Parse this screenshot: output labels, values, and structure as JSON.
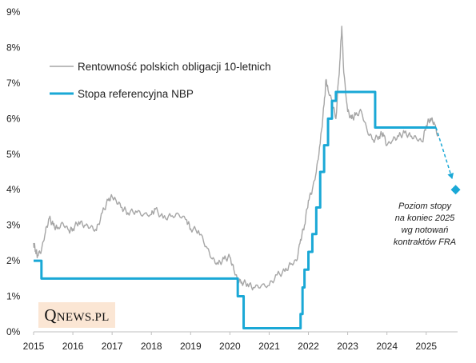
{
  "chart_data": {
    "type": "line",
    "title": "",
    "xlabel": "",
    "ylabel": "",
    "xlim": [
      2015.0,
      2025.8
    ],
    "ylim": [
      0,
      9
    ],
    "x_ticks": [
      "2015",
      "2016",
      "2017",
      "2018",
      "2019",
      "2020",
      "2021",
      "2022",
      "2023",
      "2024",
      "2025"
    ],
    "y_ticks": [
      "0%",
      "1%",
      "2%",
      "3%",
      "4%",
      "5%",
      "6%",
      "7%",
      "8%",
      "9%"
    ],
    "grid": false,
    "legend_position": "top-left",
    "series": [
      {
        "name": "Rentowność polskich obligacji 10-letnich",
        "color": "#a6a6a6",
        "x": [
          2015.0,
          2015.05,
          2015.1,
          2015.2,
          2015.3,
          2015.4,
          2015.5,
          2015.6,
          2015.75,
          2015.9,
          2016.0,
          2016.15,
          2016.3,
          2016.45,
          2016.6,
          2016.75,
          2016.9,
          2017.0,
          2017.1,
          2017.25,
          2017.4,
          2017.6,
          2017.8,
          2018.0,
          2018.1,
          2018.3,
          2018.5,
          2018.7,
          2018.9,
          2019.0,
          2019.2,
          2019.4,
          2019.55,
          2019.7,
          2019.85,
          2020.0,
          2020.1,
          2020.2,
          2020.3,
          2020.45,
          2020.6,
          2020.8,
          2021.0,
          2021.2,
          2021.4,
          2021.55,
          2021.7,
          2021.8,
          2021.9,
          2022.0,
          2022.1,
          2022.2,
          2022.3,
          2022.4,
          2022.45,
          2022.5,
          2022.6,
          2022.7,
          2022.8,
          2022.85,
          2022.9,
          2023.0,
          2023.1,
          2023.2,
          2023.35,
          2023.5,
          2023.65,
          2023.8,
          2023.9,
          2024.0,
          2024.15,
          2024.3,
          2024.45,
          2024.6,
          2024.75,
          2024.9,
          2025.0,
          2025.1,
          2025.2,
          2025.3
        ],
        "values": [
          2.5,
          2.3,
          2.15,
          2.3,
          2.8,
          3.2,
          3.0,
          2.9,
          3.05,
          2.85,
          2.9,
          3.1,
          3.0,
          2.95,
          2.85,
          3.35,
          3.7,
          3.8,
          3.7,
          3.5,
          3.35,
          3.4,
          3.3,
          3.3,
          3.45,
          3.2,
          3.25,
          3.3,
          3.15,
          2.9,
          2.85,
          2.4,
          2.05,
          1.9,
          2.05,
          2.1,
          1.75,
          1.45,
          1.4,
          1.35,
          1.25,
          1.3,
          1.3,
          1.6,
          1.7,
          1.9,
          2.0,
          2.6,
          3.0,
          3.7,
          4.0,
          4.5,
          5.3,
          6.4,
          7.1,
          6.8,
          6.5,
          6.0,
          7.6,
          8.6,
          7.3,
          6.2,
          6.0,
          6.1,
          6.2,
          5.65,
          5.4,
          5.5,
          5.6,
          5.25,
          5.4,
          5.5,
          5.6,
          5.5,
          5.45,
          5.35,
          5.8,
          6.0,
          5.9,
          5.5
        ]
      },
      {
        "name": "Stopa referencyjna NBP",
        "color": "#1aa8d6",
        "step": true,
        "x": [
          2015.0,
          2015.2,
          2020.2,
          2020.35,
          2021.8,
          2021.85,
          2021.9,
          2022.0,
          2022.1,
          2022.2,
          2022.3,
          2022.4,
          2022.5,
          2022.6,
          2022.7,
          2023.7,
          2025.25
        ],
        "values": [
          2.0,
          1.5,
          1.0,
          0.1,
          0.5,
          1.25,
          1.75,
          2.25,
          2.75,
          3.5,
          4.5,
          5.25,
          6.0,
          6.5,
          6.75,
          5.75,
          5.75
        ]
      }
    ],
    "forecast": {
      "label_lines": [
        "Poziom stopy",
        "na koniec 2025",
        "wg notowań",
        "kontraktów  FRA"
      ],
      "from": {
        "x": 2025.25,
        "y": 5.75
      },
      "point": {
        "x": 2025.75,
        "y": 4.0
      },
      "color": "#1aa8d6"
    }
  },
  "logo": {
    "letter": "Q",
    "rest": "NEWS.PL"
  }
}
